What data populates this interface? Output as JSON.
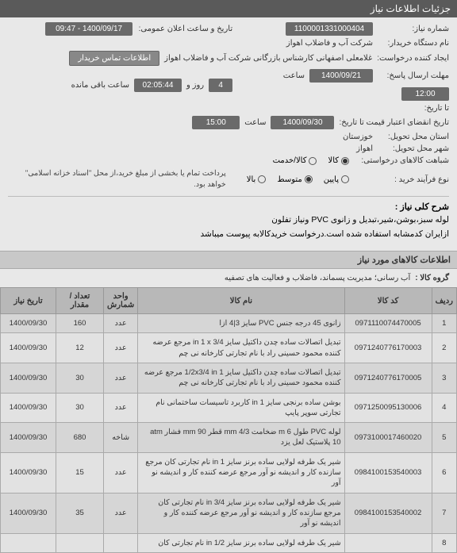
{
  "header": {
    "title": "جزئیات اطلاعات نیاز"
  },
  "form": {
    "need_no_label": "شماره نیاز:",
    "need_no": "1100001331000404",
    "announce_label": "تاریخ و ساعت اعلان عمومی:",
    "announce": "1400/09/17 - 09:47",
    "buyer_label": "نام دستگاه خریدار:",
    "buyer": "شرکت آب و فاضلاب اهواز",
    "creator_label": "ایجاد کننده درخواست:",
    "creator": "غلامعلی اصفهانی کارشناس بازرگانی شرکت آب و فاضلاب اهواز",
    "contact_btn": "اطلاعات تماس خریدار",
    "deadline_reply_label": "مهلت ارسال پاسخ:",
    "deadline_reply_sub": "تا تاریخ:",
    "deadline_reply_date": "1400/09/21",
    "deadline_reply_time_label": "ساعت",
    "deadline_reply_time": "12:00",
    "remaining_label": "روز و",
    "remaining_days": "4",
    "remaining_time_label": "ساعت باقی مانده",
    "remaining_time": "02:05:44",
    "validity_label": "تاریخ انقضای اعتبار قیمت تا تاریخ:",
    "validity_date": "1400/09/30",
    "validity_time_label": "ساعت",
    "validity_time": "15:00",
    "province_label": "استان محل تحویل:",
    "province": "خوزستان",
    "city_label": "شهر محل تحویل:",
    "city": "اهواز",
    "similar_label": "شباهت کالاهای درخواستی:",
    "type_label": "نوع فرآیند خرید :",
    "radios": {
      "kala": "کالا",
      "service": "کالا/خدمت",
      "low": "پایین",
      "mid": "متوسط",
      "high": "بالا"
    },
    "pay_note": "پرداخت تمام یا بخشی از مبلغ خرید،از محل \"اسناد خزانه اسلامی\" خواهد بود."
  },
  "description": {
    "label": "شرح کلی نیاز :",
    "line1": "لوله سبز،بوشن،شیر،تبدیل و زانوی PVC ونیاز تفلون",
    "line2": "ازایران کدمشابه استفاده شده است.درخواست خریدکالابه پیوست میباشد"
  },
  "items_section": {
    "title": "اطلاعات کالاهای مورد نیاز",
    "group_label": "گروه کالا :",
    "group_value": "آب رسانی؛ مدیریت پسماند، فاضلاب و فعالیت های تصفیه"
  },
  "table": {
    "headers": {
      "idx": "ردیف",
      "code": "کد کالا",
      "name": "نام کالا",
      "unit": "واحد شمارش",
      "qty": "تعداد / مقدار",
      "date": "تاریخ نیاز"
    },
    "rows": [
      {
        "idx": "1",
        "code": "0971110074470005",
        "name": "زانوی 45 درجه جنس PVC سایز 3|4 ازا",
        "unit": "عدد",
        "qty": "160",
        "date": "1400/09/30"
      },
      {
        "idx": "2",
        "code": "0971240776170003",
        "name": "تبدیل اتصالات ساده چدن داکتیل سایز 3/4 in 1 x مرجع عرضه کننده محمود حسینی راد با نام تجارتی کارخانه نی چم",
        "unit": "عدد",
        "qty": "12",
        "date": "1400/09/30"
      },
      {
        "idx": "3",
        "code": "0971240776170005",
        "name": "تبدیل اتصالات ساده چدن داکتیل سایز 1/2x3/4 in 1 مرجع عرضه کننده محمود حسینی راد با نام تجارتی کارخانه نی چم",
        "unit": "عدد",
        "qty": "30",
        "date": "1400/09/30"
      },
      {
        "idx": "4",
        "code": "0971250095130006",
        "name": "بوشن ساده برنجی سایز in 1 کاربرد تاسیسات ساختمانی نام تجارتی سوپر پایپ",
        "unit": "عدد",
        "qty": "30",
        "date": "1400/09/30"
      },
      {
        "idx": "5",
        "code": "0973100017460020",
        "name": "لوله PVC طول m 6 ضخامت mm 4/3 قطر mm 90 فشار atm 10 پلاستیک لعل یزد",
        "unit": "شاخه",
        "qty": "680",
        "date": "1400/09/30"
      },
      {
        "idx": "6",
        "code": "0984100153540003",
        "name": "شیر یک طرفه لولایی ساده برنز سایز in 1 نام تجارتی کان مرجع سازنده کار و اندیشه نو آور مرجع عرضه کننده کار و اندیشه نو آور",
        "unit": "عدد",
        "qty": "15",
        "date": "1400/09/30"
      },
      {
        "idx": "7",
        "code": "0984100153540002",
        "name": "شیر یک طرفه لولایی ساده برنز سایز 3/4 in نام تجارتی کان مرجع سازنده کار و اندیشه نو آور مرجع عرضه کننده کار و اندیشه نو آور",
        "unit": "عدد",
        "qty": "35",
        "date": "1400/09/30"
      },
      {
        "idx": "8",
        "code": "",
        "name": "شیر یک طرفه لولایی ساده برنز سایز 1/2 in نام تجارتی کان",
        "unit": "",
        "qty": "",
        "date": ""
      }
    ]
  }
}
